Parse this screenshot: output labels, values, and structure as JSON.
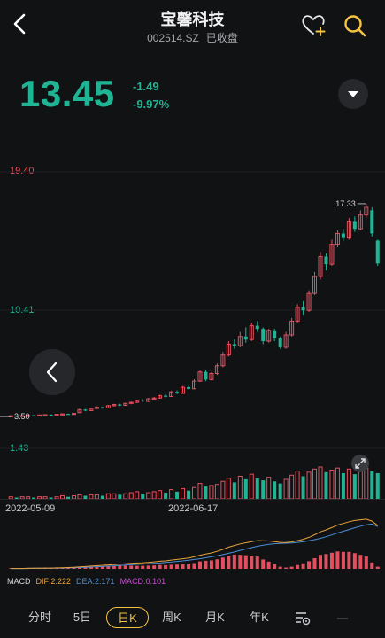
{
  "header": {
    "title": "宝馨科技",
    "code": "002514.SZ",
    "status": "已收盘"
  },
  "quote": {
    "price": "13.45",
    "change": "-1.49",
    "change_pct": "-9.97%"
  },
  "axis": {
    "high": "19.40",
    "mid": "10.41",
    "low": "1.43",
    "max_marker": "17.33",
    "min_marker": "3.50"
  },
  "dates": [
    "2022-05-09",
    "2022-06-17"
  ],
  "macd": {
    "name": "MACD",
    "dif": "DIF:2.222",
    "dea": "DEA:2.171",
    "macd": "MACD:0.101"
  },
  "tabs": [
    "分时",
    "5日",
    "日K",
    "周K",
    "月K",
    "年K"
  ],
  "colors": {
    "up": "#e2505f",
    "down": "#1fb493",
    "accent": "#f6c443",
    "dif": "#e8a23b",
    "dea": "#4a8fd6",
    "macd": "#c84fd1"
  },
  "chart_data": {
    "type": "candlestick",
    "y_max": 19.4,
    "y_min": 1.43,
    "candles": [
      [
        3.52,
        3.55,
        3.5,
        3.58,
        "up"
      ],
      [
        3.55,
        3.53,
        3.5,
        3.57,
        "down"
      ],
      [
        3.53,
        3.56,
        3.51,
        3.58,
        "up"
      ],
      [
        3.56,
        3.58,
        3.54,
        3.6,
        "up"
      ],
      [
        3.58,
        3.57,
        3.54,
        3.6,
        "down"
      ],
      [
        3.57,
        3.6,
        3.55,
        3.63,
        "up"
      ],
      [
        3.6,
        3.62,
        3.58,
        3.65,
        "up"
      ],
      [
        3.62,
        3.61,
        3.58,
        3.64,
        "down"
      ],
      [
        3.61,
        3.64,
        3.6,
        3.66,
        "up"
      ],
      [
        3.64,
        3.67,
        3.62,
        3.7,
        "up"
      ],
      [
        3.67,
        3.66,
        3.63,
        3.69,
        "down"
      ],
      [
        3.66,
        3.7,
        3.64,
        3.72,
        "up"
      ],
      [
        3.75,
        3.95,
        3.72,
        4.0,
        "up"
      ],
      [
        3.95,
        3.88,
        3.84,
        3.98,
        "down"
      ],
      [
        3.88,
        4.02,
        3.86,
        4.06,
        "up"
      ],
      [
        4.02,
        4.1,
        3.98,
        4.15,
        "up"
      ],
      [
        4.1,
        4.05,
        4.0,
        4.14,
        "down"
      ],
      [
        4.05,
        4.2,
        4.02,
        4.25,
        "up"
      ],
      [
        4.2,
        4.28,
        4.15,
        4.32,
        "up"
      ],
      [
        4.28,
        4.22,
        4.18,
        4.33,
        "down"
      ],
      [
        4.22,
        4.35,
        4.2,
        4.4,
        "up"
      ],
      [
        4.35,
        4.42,
        4.3,
        4.47,
        "up"
      ],
      [
        4.42,
        4.55,
        4.38,
        4.6,
        "up"
      ],
      [
        4.55,
        4.48,
        4.45,
        4.62,
        "down"
      ],
      [
        4.48,
        4.65,
        4.45,
        4.7,
        "up"
      ],
      [
        4.65,
        4.7,
        4.6,
        4.78,
        "up"
      ],
      [
        4.7,
        4.85,
        4.66,
        4.92,
        "up"
      ],
      [
        4.85,
        4.8,
        4.75,
        4.95,
        "down"
      ],
      [
        4.8,
        5.1,
        4.78,
        5.18,
        "up"
      ],
      [
        5.1,
        5.0,
        4.95,
        5.2,
        "down"
      ],
      [
        5.0,
        5.4,
        4.98,
        5.48,
        "up"
      ],
      [
        5.4,
        5.3,
        5.25,
        5.5,
        "down"
      ],
      [
        5.3,
        5.8,
        5.28,
        5.92,
        "up"
      ],
      [
        5.8,
        6.4,
        5.75,
        6.5,
        "up"
      ],
      [
        6.4,
        5.9,
        5.8,
        6.5,
        "down"
      ],
      [
        5.9,
        6.3,
        5.85,
        6.4,
        "up"
      ],
      [
        6.3,
        6.8,
        6.2,
        6.95,
        "up"
      ],
      [
        6.8,
        7.5,
        6.7,
        7.7,
        "up"
      ],
      [
        7.5,
        8.2,
        7.4,
        8.4,
        "up"
      ],
      [
        8.2,
        8.1,
        7.9,
        8.5,
        "down"
      ],
      [
        8.1,
        8.7,
        8.0,
        9.0,
        "up"
      ],
      [
        8.7,
        8.5,
        8.3,
        9.3,
        "down"
      ],
      [
        8.5,
        9.4,
        8.4,
        9.6,
        "up"
      ],
      [
        9.4,
        9.2,
        9.0,
        9.7,
        "down"
      ],
      [
        9.2,
        8.4,
        8.2,
        9.3,
        "down"
      ],
      [
        8.4,
        9.1,
        8.3,
        9.2,
        "up"
      ],
      [
        9.1,
        8.6,
        8.4,
        9.2,
        "down"
      ],
      [
        8.6,
        8.0,
        7.9,
        8.7,
        "down"
      ],
      [
        8.0,
        8.8,
        7.9,
        9.0,
        "up"
      ],
      [
        8.8,
        9.7,
        8.7,
        9.9,
        "up"
      ],
      [
        9.7,
        10.6,
        9.6,
        10.8,
        "up"
      ],
      [
        10.6,
        10.4,
        10.1,
        11.0,
        "down"
      ],
      [
        10.4,
        11.5,
        10.3,
        11.7,
        "up"
      ],
      [
        11.5,
        12.6,
        11.4,
        12.9,
        "up"
      ],
      [
        12.6,
        13.9,
        12.4,
        14.2,
        "up"
      ],
      [
        13.9,
        13.4,
        13.0,
        14.1,
        "down"
      ],
      [
        13.4,
        14.7,
        13.3,
        15.0,
        "up"
      ],
      [
        14.7,
        15.4,
        14.5,
        15.6,
        "up"
      ],
      [
        15.4,
        15.1,
        14.9,
        15.7,
        "down"
      ],
      [
        15.1,
        16.2,
        15.0,
        16.4,
        "up"
      ],
      [
        16.2,
        15.7,
        15.5,
        16.5,
        "down"
      ],
      [
        15.7,
        16.6,
        15.6,
        16.9,
        "up"
      ],
      [
        16.6,
        17.1,
        16.4,
        17.33,
        "up"
      ],
      [
        16.9,
        15.4,
        15.2,
        17.1,
        "down"
      ],
      [
        14.94,
        13.45,
        13.3,
        15.0,
        "down"
      ]
    ],
    "volume": [
      2,
      1,
      2,
      2,
      1,
      2,
      2,
      1,
      2,
      3,
      2,
      3,
      4,
      3,
      4,
      4,
      3,
      5,
      5,
      4,
      5,
      6,
      7,
      5,
      6,
      7,
      8,
      6,
      9,
      7,
      10,
      8,
      11,
      15,
      12,
      13,
      14,
      17,
      20,
      16,
      22,
      19,
      24,
      20,
      18,
      21,
      17,
      15,
      19,
      23,
      27,
      22,
      26,
      29,
      31,
      26,
      28,
      30,
      25,
      29,
      24,
      28,
      30,
      27,
      25
    ],
    "macd_dif": [
      0.02,
      0.02,
      0.02,
      0.03,
      0.03,
      0.03,
      0.04,
      0.04,
      0.05,
      0.06,
      0.07,
      0.08,
      0.1,
      0.12,
      0.14,
      0.16,
      0.18,
      0.2,
      0.22,
      0.24,
      0.26,
      0.28,
      0.3,
      0.31,
      0.33,
      0.36,
      0.39,
      0.41,
      0.45,
      0.48,
      0.52,
      0.56,
      0.62,
      0.7,
      0.76,
      0.82,
      0.9,
      1.0,
      1.12,
      1.2,
      1.28,
      1.34,
      1.4,
      1.45,
      1.44,
      1.43,
      1.4,
      1.36,
      1.35,
      1.38,
      1.45,
      1.52,
      1.62,
      1.75,
      1.9,
      2.0,
      2.12,
      2.25,
      2.33,
      2.42,
      2.48,
      2.52,
      2.55,
      2.45,
      2.22
    ],
    "macd_dea": [
      0.02,
      0.02,
      0.02,
      0.02,
      0.03,
      0.03,
      0.03,
      0.03,
      0.04,
      0.04,
      0.05,
      0.06,
      0.07,
      0.08,
      0.09,
      0.11,
      0.12,
      0.14,
      0.15,
      0.17,
      0.19,
      0.21,
      0.23,
      0.24,
      0.26,
      0.28,
      0.3,
      0.33,
      0.35,
      0.38,
      0.41,
      0.44,
      0.48,
      0.52,
      0.57,
      0.62,
      0.67,
      0.73,
      0.8,
      0.87,
      0.95,
      1.02,
      1.09,
      1.16,
      1.22,
      1.26,
      1.29,
      1.31,
      1.32,
      1.33,
      1.36,
      1.39,
      1.44,
      1.5,
      1.57,
      1.65,
      1.74,
      1.84,
      1.93,
      2.02,
      2.11,
      2.19,
      2.26,
      2.3,
      2.17
    ],
    "macd_hist": [
      0.0,
      0.0,
      0.0,
      0.01,
      0.01,
      0.01,
      0.01,
      0.02,
      0.02,
      0.03,
      0.03,
      0.04,
      0.05,
      0.06,
      0.08,
      0.09,
      0.11,
      0.13,
      0.14,
      0.16,
      0.15,
      0.15,
      0.14,
      0.14,
      0.15,
      0.16,
      0.18,
      0.17,
      0.19,
      0.2,
      0.22,
      0.24,
      0.27,
      0.35,
      0.38,
      0.4,
      0.45,
      0.53,
      0.62,
      0.67,
      0.66,
      0.64,
      0.62,
      0.58,
      0.44,
      0.34,
      0.22,
      0.1,
      0.06,
      0.1,
      0.18,
      0.26,
      0.36,
      0.5,
      0.66,
      0.7,
      0.76,
      0.82,
      0.8,
      0.8,
      0.74,
      0.66,
      0.58,
      0.3,
      0.1
    ]
  }
}
